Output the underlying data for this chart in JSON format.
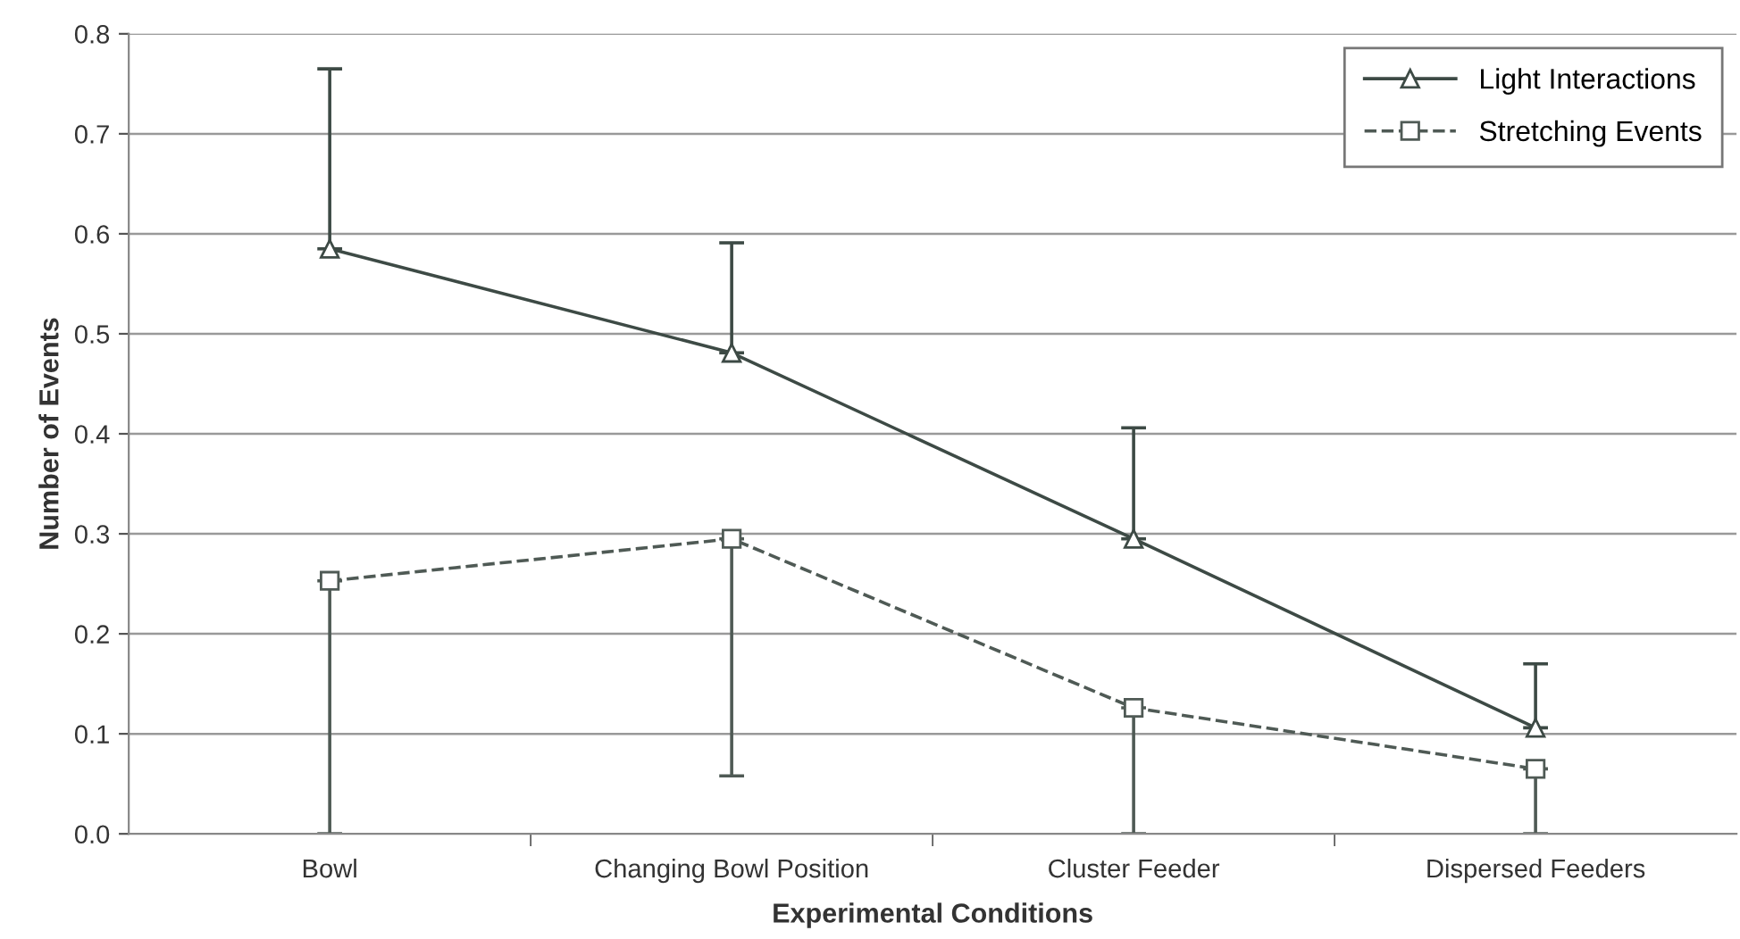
{
  "chart_data": {
    "type": "line",
    "xlabel": "Experimental Conditions",
    "ylabel": "Number of Events",
    "categories": [
      "Bowl",
      "Changing Bowl Position",
      "Cluster Feeder",
      "Dispersed Feeders"
    ],
    "series": [
      {
        "name": "Light Interactions",
        "color": "#3d4a45",
        "values": [
          0.585,
          0.481,
          0.295,
          0.106
        ],
        "marker": "triangle",
        "line_style": "solid",
        "errors": [
          [
            0.585,
            0.765
          ],
          [
            0.481,
            0.591
          ],
          [
            0.295,
            0.406
          ],
          [
            0.106,
            0.17
          ]
        ]
      },
      {
        "name": "Stretching Events",
        "color": "#4f5a55",
        "values": [
          0.253,
          0.295,
          0.126,
          0.065
        ],
        "marker": "square",
        "line_style": "dashed",
        "errors": [
          [
            0.0,
            0.253
          ],
          [
            0.058,
            0.295
          ],
          [
            0.0,
            0.126
          ],
          [
            0.0,
            0.065
          ]
        ]
      }
    ],
    "ylim": [
      0,
      0.8
    ],
    "yticks": [
      {
        "value": 0,
        "label": "0.0"
      },
      0.1,
      0.2,
      0.3,
      0.4,
      0.5,
      0.6,
      0.7,
      0.8
    ],
    "grid": "y",
    "legend": "top right"
  }
}
